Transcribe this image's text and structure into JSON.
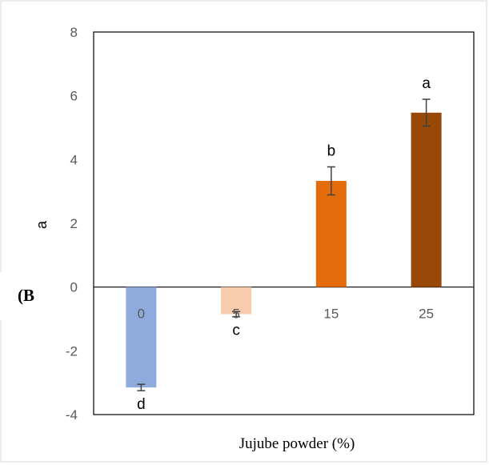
{
  "panel_label": "(B",
  "chart_data": {
    "type": "bar",
    "title": "",
    "xlabel": "Jujube powder (%)",
    "ylabel": "a",
    "categories": [
      "0",
      "5",
      "15",
      "25"
    ],
    "values": [
      -3.15,
      -0.85,
      3.33,
      5.47
    ],
    "errors": [
      0.1,
      0.08,
      0.44,
      0.42
    ],
    "significance_letters": [
      "d",
      "c",
      "b",
      "a"
    ],
    "colors": [
      "#8faadc",
      "#f8cbad",
      "#e46c0a",
      "#984807"
    ],
    "ylim": [
      -4,
      8
    ],
    "yticks": [
      "8",
      "6",
      "4",
      "2",
      "0",
      "-2",
      "-4"
    ],
    "grid": false,
    "legend": "none"
  }
}
